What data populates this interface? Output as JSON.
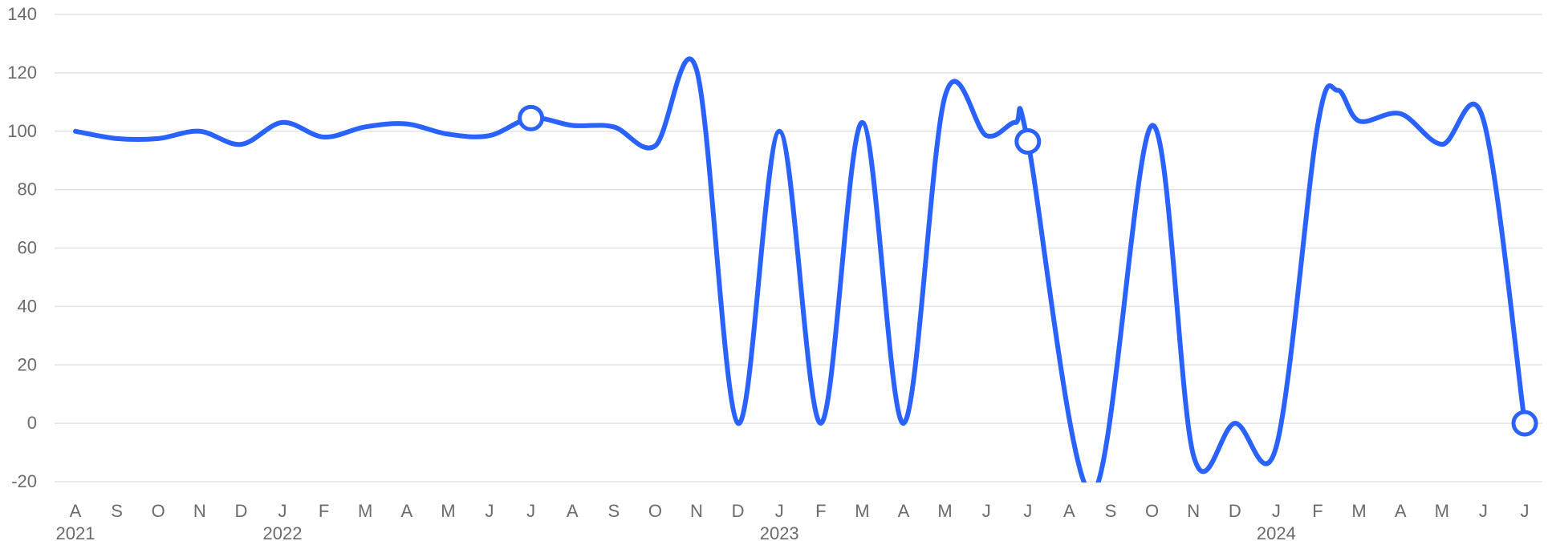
{
  "chart_data": {
    "type": "line",
    "title": "",
    "xlabel": "",
    "ylabel": "",
    "ylim": [
      -20,
      140
    ],
    "yticks": [
      -20,
      0,
      20,
      40,
      60,
      80,
      100,
      120,
      140
    ],
    "grid": true,
    "legend": "none",
    "x": [
      "2021-08",
      "2021-09",
      "2021-10",
      "2021-11",
      "2021-12",
      "2022-01",
      "2022-02",
      "2022-03",
      "2022-04",
      "2022-05",
      "2022-06",
      "2022-07",
      "2022-08",
      "2022-09",
      "2022-10",
      "2022-11",
      "2022-12",
      "2023-01",
      "2023-02",
      "2023-03",
      "2023-04",
      "2023-05",
      "2023-06",
      "2023-07",
      "2023-08",
      "2023-09",
      "2023-10",
      "2023-11",
      "2023-12",
      "2024-01",
      "2024-02",
      "2024-03",
      "2024-04",
      "2024-05",
      "2024-06",
      "2024-07"
    ],
    "x_tick_labels": [
      "A",
      "S",
      "O",
      "N",
      "D",
      "J",
      "F",
      "M",
      "A",
      "M",
      "J",
      "J",
      "A",
      "S",
      "O",
      "N",
      "D",
      "J",
      "F",
      "M",
      "A",
      "M",
      "J",
      "J",
      "A",
      "S",
      "O",
      "N",
      "D",
      "J",
      "F",
      "M",
      "A",
      "M",
      "J",
      "J"
    ],
    "year_labels": [
      {
        "label": "2021",
        "index": 0
      },
      {
        "label": "2022",
        "index": 5
      },
      {
        "label": "2023",
        "index": 17
      },
      {
        "label": "2024",
        "index": 29
      }
    ],
    "series": [
      {
        "color": "#2962ff",
        "values": [
          {
            "x": "2021-08-01",
            "y": 100
          },
          {
            "x": "2021-09-01",
            "y": 97.5
          },
          {
            "x": "2021-10-01",
            "y": 97.5
          },
          {
            "x": "2021-11-01",
            "y": 100
          },
          {
            "x": "2021-12-01",
            "y": 95.5
          },
          {
            "x": "2022-01-01",
            "y": 103
          },
          {
            "x": "2022-02-01",
            "y": 98
          },
          {
            "x": "2022-03-01",
            "y": 101.5
          },
          {
            "x": "2022-04-01",
            "y": 102.5
          },
          {
            "x": "2022-05-01",
            "y": 99
          },
          {
            "x": "2022-06-01",
            "y": 98.5
          },
          {
            "x": "2022-07-01",
            "y": 104.5
          },
          {
            "x": "2022-08-01",
            "y": 102
          },
          {
            "x": "2022-09-01",
            "y": 101.5
          },
          {
            "x": "2022-10-01",
            "y": 95
          },
          {
            "x": "2022-11-01",
            "y": 121
          },
          {
            "x": "2022-12-01",
            "y": 0
          },
          {
            "x": "2023-01-01",
            "y": 100
          },
          {
            "x": "2023-02-01",
            "y": 0
          },
          {
            "x": "2023-03-01",
            "y": 103
          },
          {
            "x": "2023-04-01",
            "y": 0
          },
          {
            "x": "2023-05-01",
            "y": 112
          },
          {
            "x": "2023-06-01",
            "y": 98.5
          },
          {
            "x": "2023-06-22",
            "y": 103
          },
          {
            "x": "2023-07-01",
            "y": 96.5
          },
          {
            "x": "2023-08-18",
            "y": -24
          },
          {
            "x": "2023-10-01",
            "y": 102
          },
          {
            "x": "2023-11-01",
            "y": -11
          },
          {
            "x": "2023-12-01",
            "y": 0
          },
          {
            "x": "2024-01-01",
            "y": -8
          },
          {
            "x": "2024-02-01",
            "y": 102
          },
          {
            "x": "2024-02-15",
            "y": 114
          },
          {
            "x": "2024-03-01",
            "y": 103.5
          },
          {
            "x": "2024-04-01",
            "y": 106
          },
          {
            "x": "2024-05-01",
            "y": 95.5
          },
          {
            "x": "2024-06-01",
            "y": 104
          },
          {
            "x": "2024-07-01",
            "y": 0
          }
        ],
        "highlighted_points": [
          {
            "x": "2022-07-01",
            "y": 104.5
          },
          {
            "x": "2023-07-01",
            "y": 96.5
          },
          {
            "x": "2024-07-01",
            "y": 0
          }
        ]
      }
    ]
  }
}
